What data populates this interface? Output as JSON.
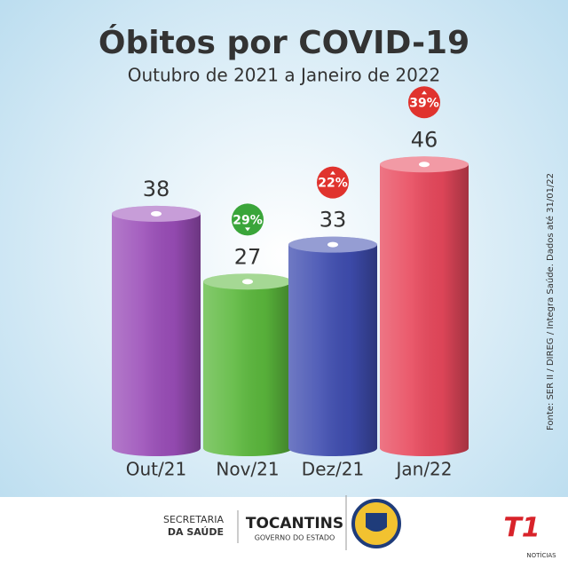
{
  "chart_data": {
    "type": "bar",
    "title": "Óbitos por COVID-19",
    "subtitle": "Outubro de 2021 a Janeiro de 2022",
    "categories": [
      "Out/21",
      "Nov/21",
      "Dez/21",
      "Jan/22"
    ],
    "values": [
      38,
      27,
      33,
      46
    ],
    "colors": [
      "#9a4db8",
      "#5bb83c",
      "#3f4db0",
      "#e8485c"
    ],
    "changes": [
      null,
      29,
      22,
      39
    ],
    "change_labels": [
      null,
      "29%",
      "22%",
      "39%"
    ],
    "change_direction": [
      null,
      "down",
      "up",
      "up"
    ],
    "change_colors": [
      null,
      "#3aa53a",
      "#e0332e",
      "#e0332e"
    ],
    "source": "Fonte: SER II / DIREG / Integra Saúde. Dados até 31/01/22"
  },
  "footer": {
    "secretaria": "SECRETARIA",
    "saude": "DA SAÚDE",
    "state": "TOCANTINS",
    "government": "GOVERNO DO ESTADO",
    "brand": "T1",
    "brand_sub": "NOTÍCIAS"
  }
}
